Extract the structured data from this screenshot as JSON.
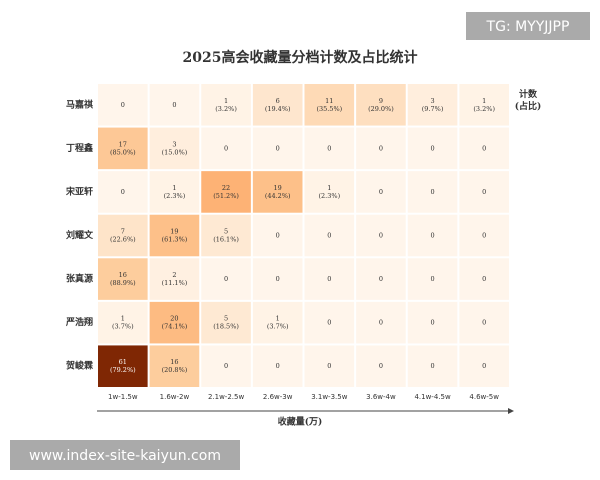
{
  "chart_data": {
    "type": "heatmap",
    "title": "2025高会收藏量分档计数及占比统计",
    "x_label": "收藏量(万)",
    "colorbar_label": "计数\n(占比)",
    "colormap": "Oranges",
    "categories": [
      "1w-1.5w",
      "1.6w-2w",
      "2.1w-2.5w",
      "2.6w-3w",
      "3.1w-3.5w",
      "3.6w-4w",
      "4.1w-4.5w",
      "4.6w-5w"
    ],
    "rows": [
      "马嘉祺",
      "丁程鑫",
      "宋亚轩",
      "刘耀文",
      "张真源",
      "严浩翔",
      "贺峻霖"
    ],
    "values": [
      [
        0,
        0,
        1,
        6,
        11,
        9,
        3,
        1
      ],
      [
        17,
        3,
        0,
        0,
        0,
        0,
        0,
        0
      ],
      [
        0,
        1,
        22,
        19,
        1,
        0,
        0,
        0
      ],
      [
        7,
        19,
        5,
        0,
        0,
        0,
        0,
        0
      ],
      [
        16,
        2,
        0,
        0,
        0,
        0,
        0,
        0
      ],
      [
        1,
        20,
        5,
        1,
        0,
        0,
        0,
        0
      ],
      [
        61,
        16,
        0,
        0,
        0,
        0,
        0,
        0
      ]
    ],
    "percent_labels": [
      [
        null,
        null,
        "(3.2%)",
        "(19.4%)",
        "(35.5%)",
        "(29.0%)",
        "(9.7%)",
        "(3.2%)"
      ],
      [
        "(85.0%)",
        "(15.0%)",
        null,
        null,
        null,
        null,
        null,
        null
      ],
      [
        null,
        "(2.3%)",
        "(51.2%)",
        "(44.2%)",
        "(2.3%)",
        null,
        null,
        null
      ],
      [
        "(22.6%)",
        "(61.3%)",
        "(16.1%)",
        null,
        null,
        null,
        null,
        null
      ],
      [
        "(88.9%)",
        "(11.1%)",
        null,
        null,
        null,
        null,
        null,
        null
      ],
      [
        "(3.7%)",
        "(74.1%)",
        "(18.5%)",
        "(3.7%)",
        null,
        null,
        null,
        null
      ],
      [
        "(79.2%)",
        "(20.8%)",
        null,
        null,
        null,
        null,
        null,
        null
      ]
    ]
  },
  "watermarks": [
    "TG: MYYJJPP",
    "www.index-site-kaiyun.com"
  ]
}
